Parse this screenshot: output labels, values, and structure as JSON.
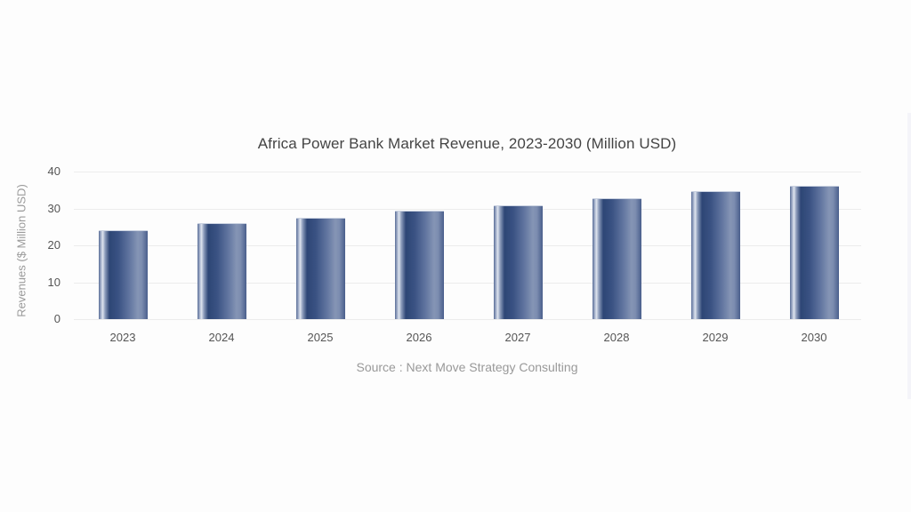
{
  "chart_data": {
    "type": "bar",
    "title": "Africa Power Bank Market Revenue, 2023-2030 (Million USD)",
    "xlabel": "",
    "ylabel": "Revenues ($ Million USD)",
    "categories": [
      "2023",
      "2024",
      "2025",
      "2026",
      "2027",
      "2028",
      "2029",
      "2030"
    ],
    "values": [
      23.9,
      25.7,
      27.3,
      29.2,
      30.7,
      32.6,
      34.4,
      36.0
    ],
    "ylim": [
      0,
      40
    ],
    "yticks": [
      "0",
      "10",
      "20",
      "30",
      "40"
    ],
    "grid": true,
    "legend": null,
    "bar_color": "#2d4675",
    "source": "Source : Next Move Strategy Consulting"
  }
}
